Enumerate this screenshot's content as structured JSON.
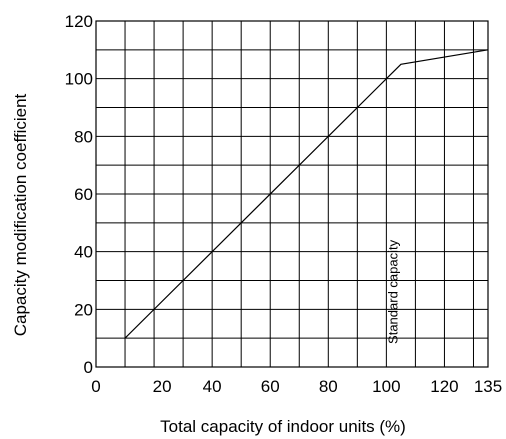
{
  "chart_data": {
    "type": "line",
    "title": "",
    "xlabel": "Total capacity of indoor units (%)",
    "ylabel": "Capacity modification coefficient",
    "xlim": [
      0,
      135
    ],
    "ylim": [
      0,
      120
    ],
    "x_ticks": [
      0,
      20,
      40,
      60,
      80,
      100,
      120,
      135
    ],
    "x_tick_labels": [
      "0",
      "20",
      "40",
      "60",
      "80",
      "100",
      "120",
      "135"
    ],
    "y_ticks": [
      0,
      20,
      40,
      60,
      80,
      100,
      120
    ],
    "y_tick_labels": [
      "0",
      "20",
      "40",
      "60",
      "80",
      "100",
      "120"
    ],
    "x_grid_step": 10,
    "y_grid_step": 10,
    "grid": true,
    "series": [
      {
        "x": [
          10,
          100,
          105,
          135
        ],
        "y": [
          10,
          100,
          105,
          110
        ]
      }
    ],
    "annotations": [
      {
        "text": "Standard capacity",
        "x": 100,
        "y_from": 0,
        "y_to": 50,
        "orientation": "vertical"
      }
    ]
  }
}
